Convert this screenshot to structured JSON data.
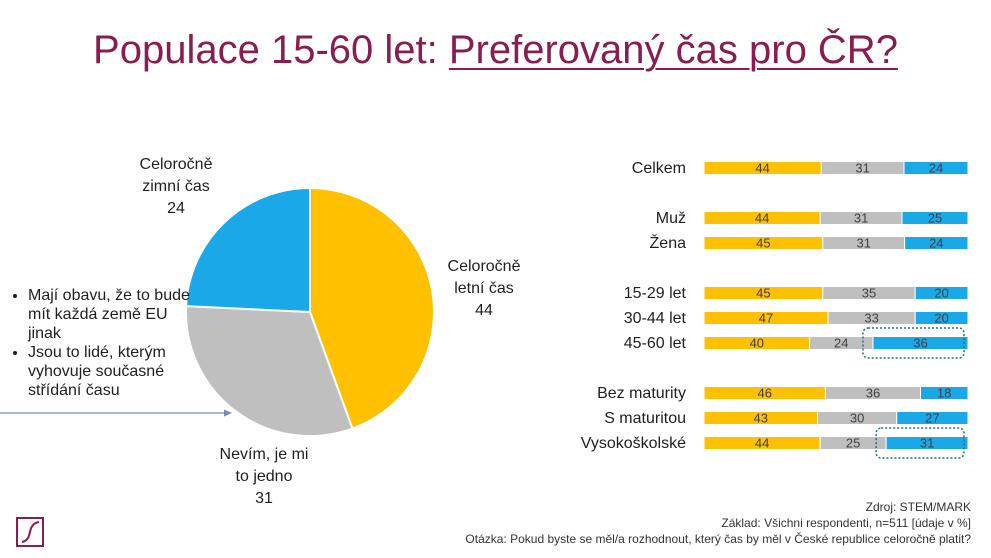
{
  "title": {
    "prefix": "Populace 15-60 let: ",
    "emphasis": "Preferovaný čas pro ČR?"
  },
  "colors": {
    "summer": "#ffc000",
    "neutral": "#bfbfbf",
    "winter": "#1aa8e8",
    "title": "#8a1d50",
    "highlight": "#1f6f7a"
  },
  "pie_labels": {
    "winter": {
      "line1": "Celoročně",
      "line2": "zimní čas",
      "value": "24"
    },
    "summer": {
      "line1": "Celoročně",
      "line2": "letní čas",
      "value": "44"
    },
    "neutral": {
      "line1": "Nevím, je mi",
      "line2": "to jedno",
      "value": "31"
    }
  },
  "notes": [
    "Mají obavu, že to bude mít každá země EU jinak",
    "Jsou to lidé, kterým vyhovuje současné střídání času"
  ],
  "chart_data": [
    {
      "type": "pie",
      "slices": [
        {
          "name": "Celoročně letní čas",
          "value": 44
        },
        {
          "name": "Nevím, je mi to jedno",
          "value": 31
        },
        {
          "name": "Celoročně zimní čas",
          "value": 24
        }
      ]
    },
    {
      "type": "bar",
      "orientation": "horizontal",
      "stacked": true,
      "categories": [
        "Celkem",
        "Muž",
        "Žena",
        "15-29 let",
        "30-44 let",
        "45-60 let",
        "Bez maturity",
        "S maturitou",
        "Vysokoškolské"
      ],
      "groups": [
        [
          0
        ],
        [
          1,
          2
        ],
        [
          3,
          4,
          5
        ],
        [
          6,
          7,
          8
        ]
      ],
      "series": [
        {
          "values": [
            44,
            44,
            45,
            45,
            47,
            40,
            46,
            43,
            44
          ]
        },
        {
          "values": [
            31,
            31,
            31,
            35,
            33,
            24,
            36,
            30,
            25
          ]
        },
        {
          "values": [
            24,
            25,
            24,
            20,
            20,
            36,
            18,
            27,
            31
          ]
        }
      ],
      "highlighted": [
        "45-60 let",
        "Vysokoškolské"
      ]
    }
  ],
  "footer": {
    "source": "Zdroj: STEM/MARK",
    "base": "Základ: Všichni respondenti, n=511 [údaje v %]",
    "question": "Otázka: Pokud byste se měl/a rozhodnout, který čas by měl v České republice celoročně platit?"
  },
  "logo": {
    "icon": "stem-mark-logo"
  }
}
